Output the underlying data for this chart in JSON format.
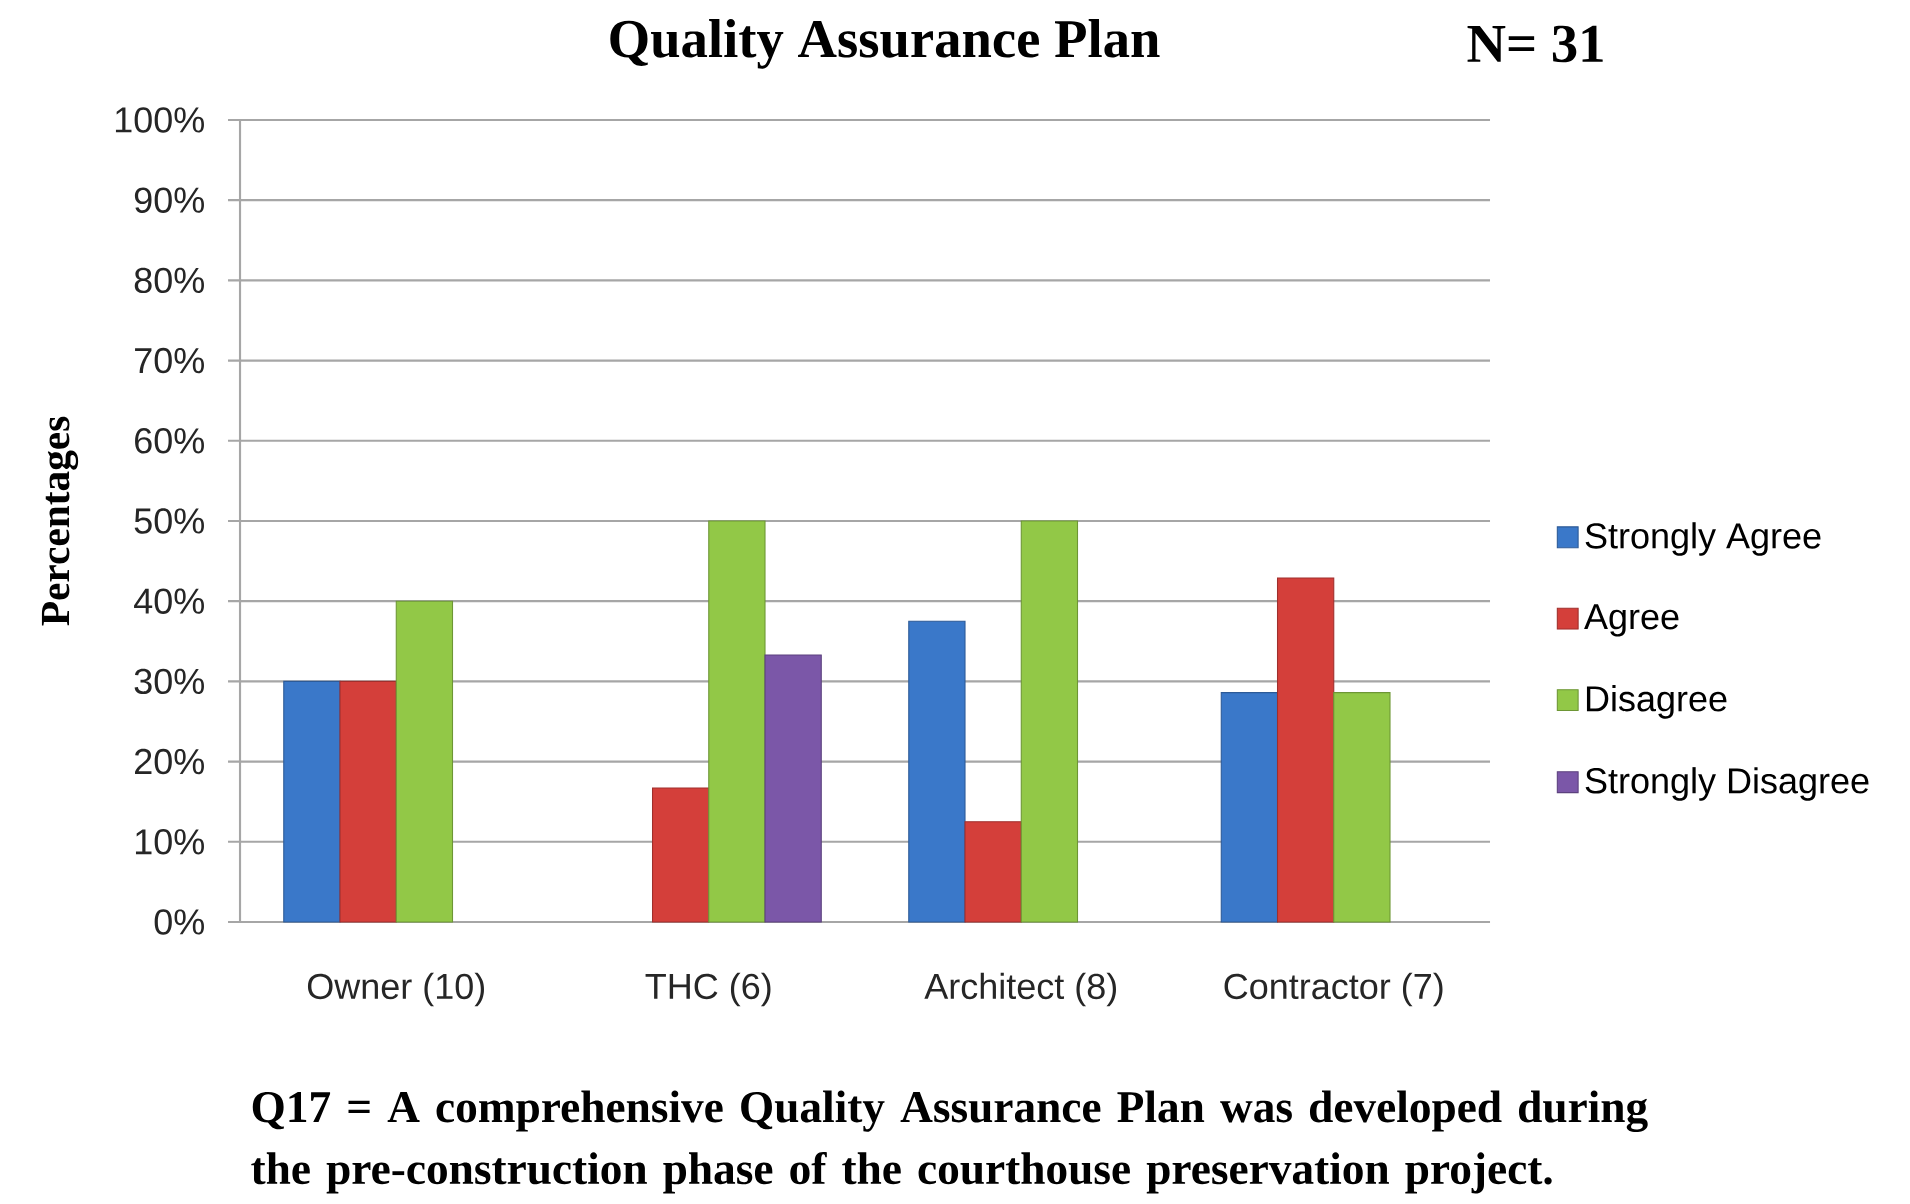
{
  "chart_data": {
    "type": "bar",
    "title": "Quality Assurance Plan",
    "subtitle": "N= 31",
    "ylabel": "Percentages",
    "annotations": [
      "Q17 = A comprehensive Quality Assurance Plan was developed during the pre-construction phase of the courthouse preservation project."
    ],
    "categories": [
      "Owner (10)",
      "THC (6)",
      "Architect (8)",
      "Contractor (7)"
    ],
    "series": [
      {
        "name": "Strongly Agree",
        "color": "#3a78c9",
        "values": [
          30,
          null,
          37.5,
          28.6
        ]
      },
      {
        "name": "Agree",
        "color": "#d43f3a",
        "values": [
          30,
          16.7,
          12.5,
          42.9
        ]
      },
      {
        "name": "Disagree",
        "color": "#92c847",
        "values": [
          40,
          50,
          50,
          28.6
        ]
      },
      {
        "name": "Strongly Disagree",
        "color": "#7b57a8",
        "values": [
          null,
          33.3,
          null,
          null
        ]
      }
    ],
    "ylim": [
      0,
      100
    ],
    "yticks": [
      {
        "value": 0,
        "label": "0%"
      },
      {
        "value": 10,
        "label": "10%"
      },
      {
        "value": 20,
        "label": "20%"
      },
      {
        "value": 30,
        "label": "30%"
      },
      {
        "value": 40,
        "label": "40%"
      },
      {
        "value": 50,
        "label": "50%"
      },
      {
        "value": 60,
        "label": "60%"
      },
      {
        "value": 70,
        "label": "70%"
      },
      {
        "value": 80,
        "label": "80%"
      },
      {
        "value": 90,
        "label": "90%"
      },
      {
        "value": 100,
        "label": "100%"
      }
    ],
    "grid": "y",
    "legend": "right"
  }
}
